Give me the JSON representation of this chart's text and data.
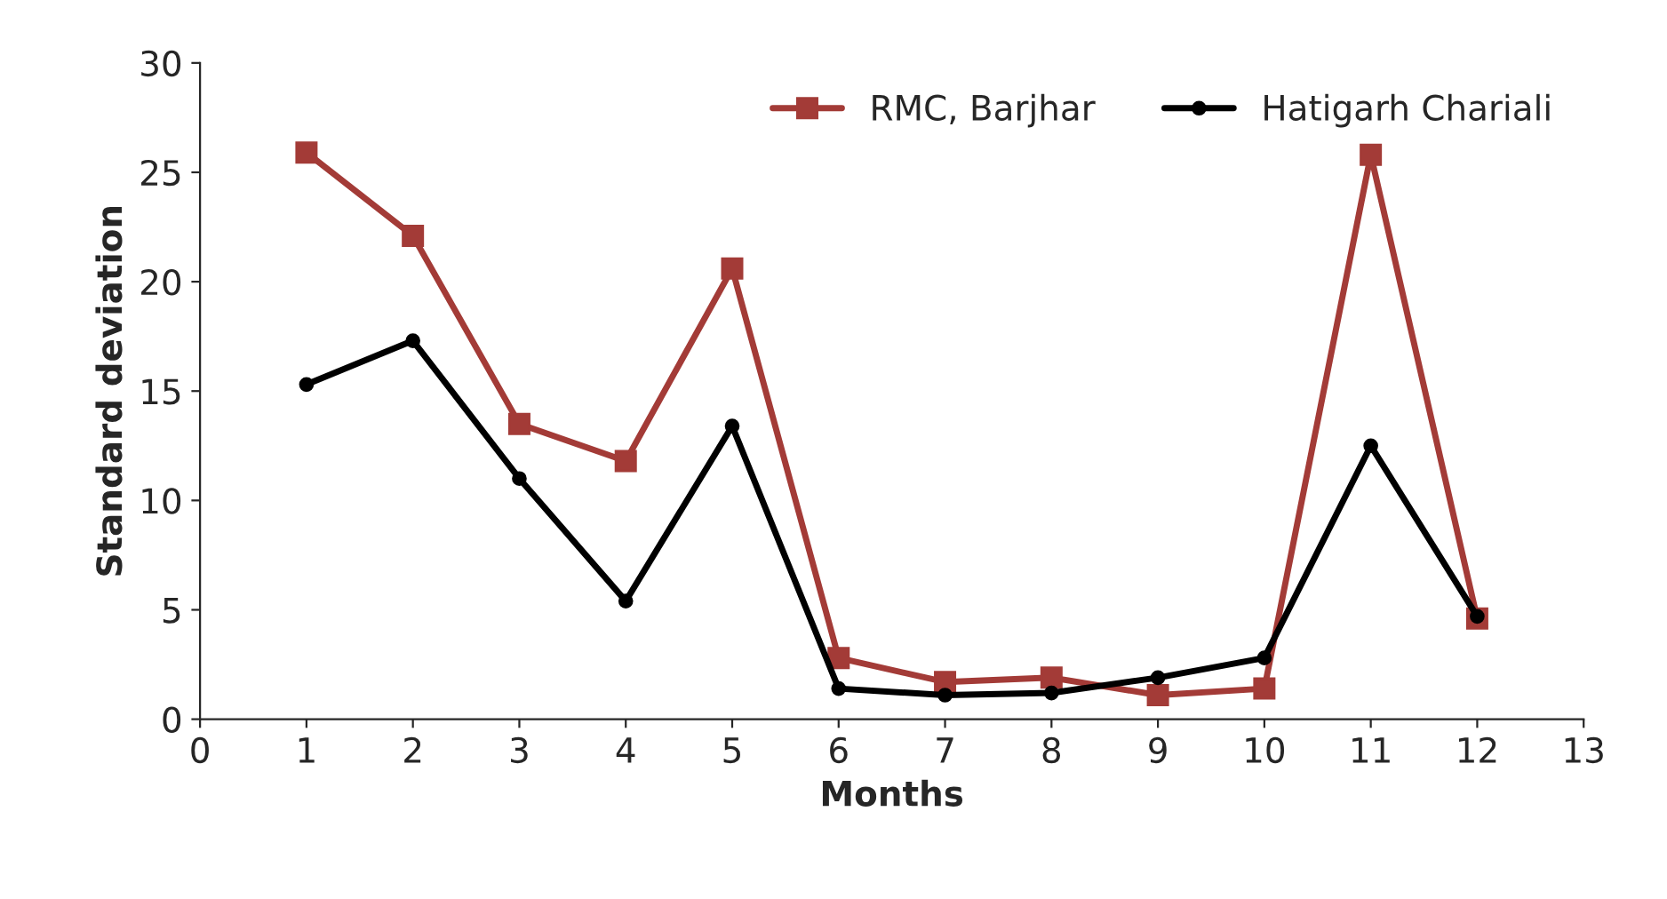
{
  "chart_data": {
    "type": "line",
    "xlabel": "Months",
    "ylabel": "Standard deviation",
    "x": [
      1,
      2,
      3,
      4,
      5,
      6,
      7,
      8,
      9,
      10,
      11,
      12
    ],
    "series": [
      {
        "name": "RMC, Barjhar",
        "color": "#a33b37",
        "marker": "square",
        "values": [
          25.9,
          22.1,
          13.5,
          11.8,
          20.6,
          2.8,
          1.7,
          1.9,
          1.1,
          1.4,
          25.8,
          4.6
        ]
      },
      {
        "name": "Hatigarh Chariali",
        "color": "#000000",
        "marker": "circle",
        "values": [
          15.3,
          17.3,
          11.0,
          5.4,
          13.4,
          1.4,
          1.1,
          1.2,
          1.9,
          2.8,
          12.5,
          4.7
        ]
      }
    ],
    "xlim": [
      0,
      13
    ],
    "xticks": [
      0,
      1,
      2,
      3,
      4,
      5,
      6,
      7,
      8,
      9,
      10,
      11,
      12,
      13
    ],
    "ylim": [
      0,
      30
    ],
    "yticks": [
      0,
      5,
      10,
      15,
      20,
      25,
      30
    ],
    "grid": false,
    "legend": "top right",
    "line_style": "solid"
  }
}
